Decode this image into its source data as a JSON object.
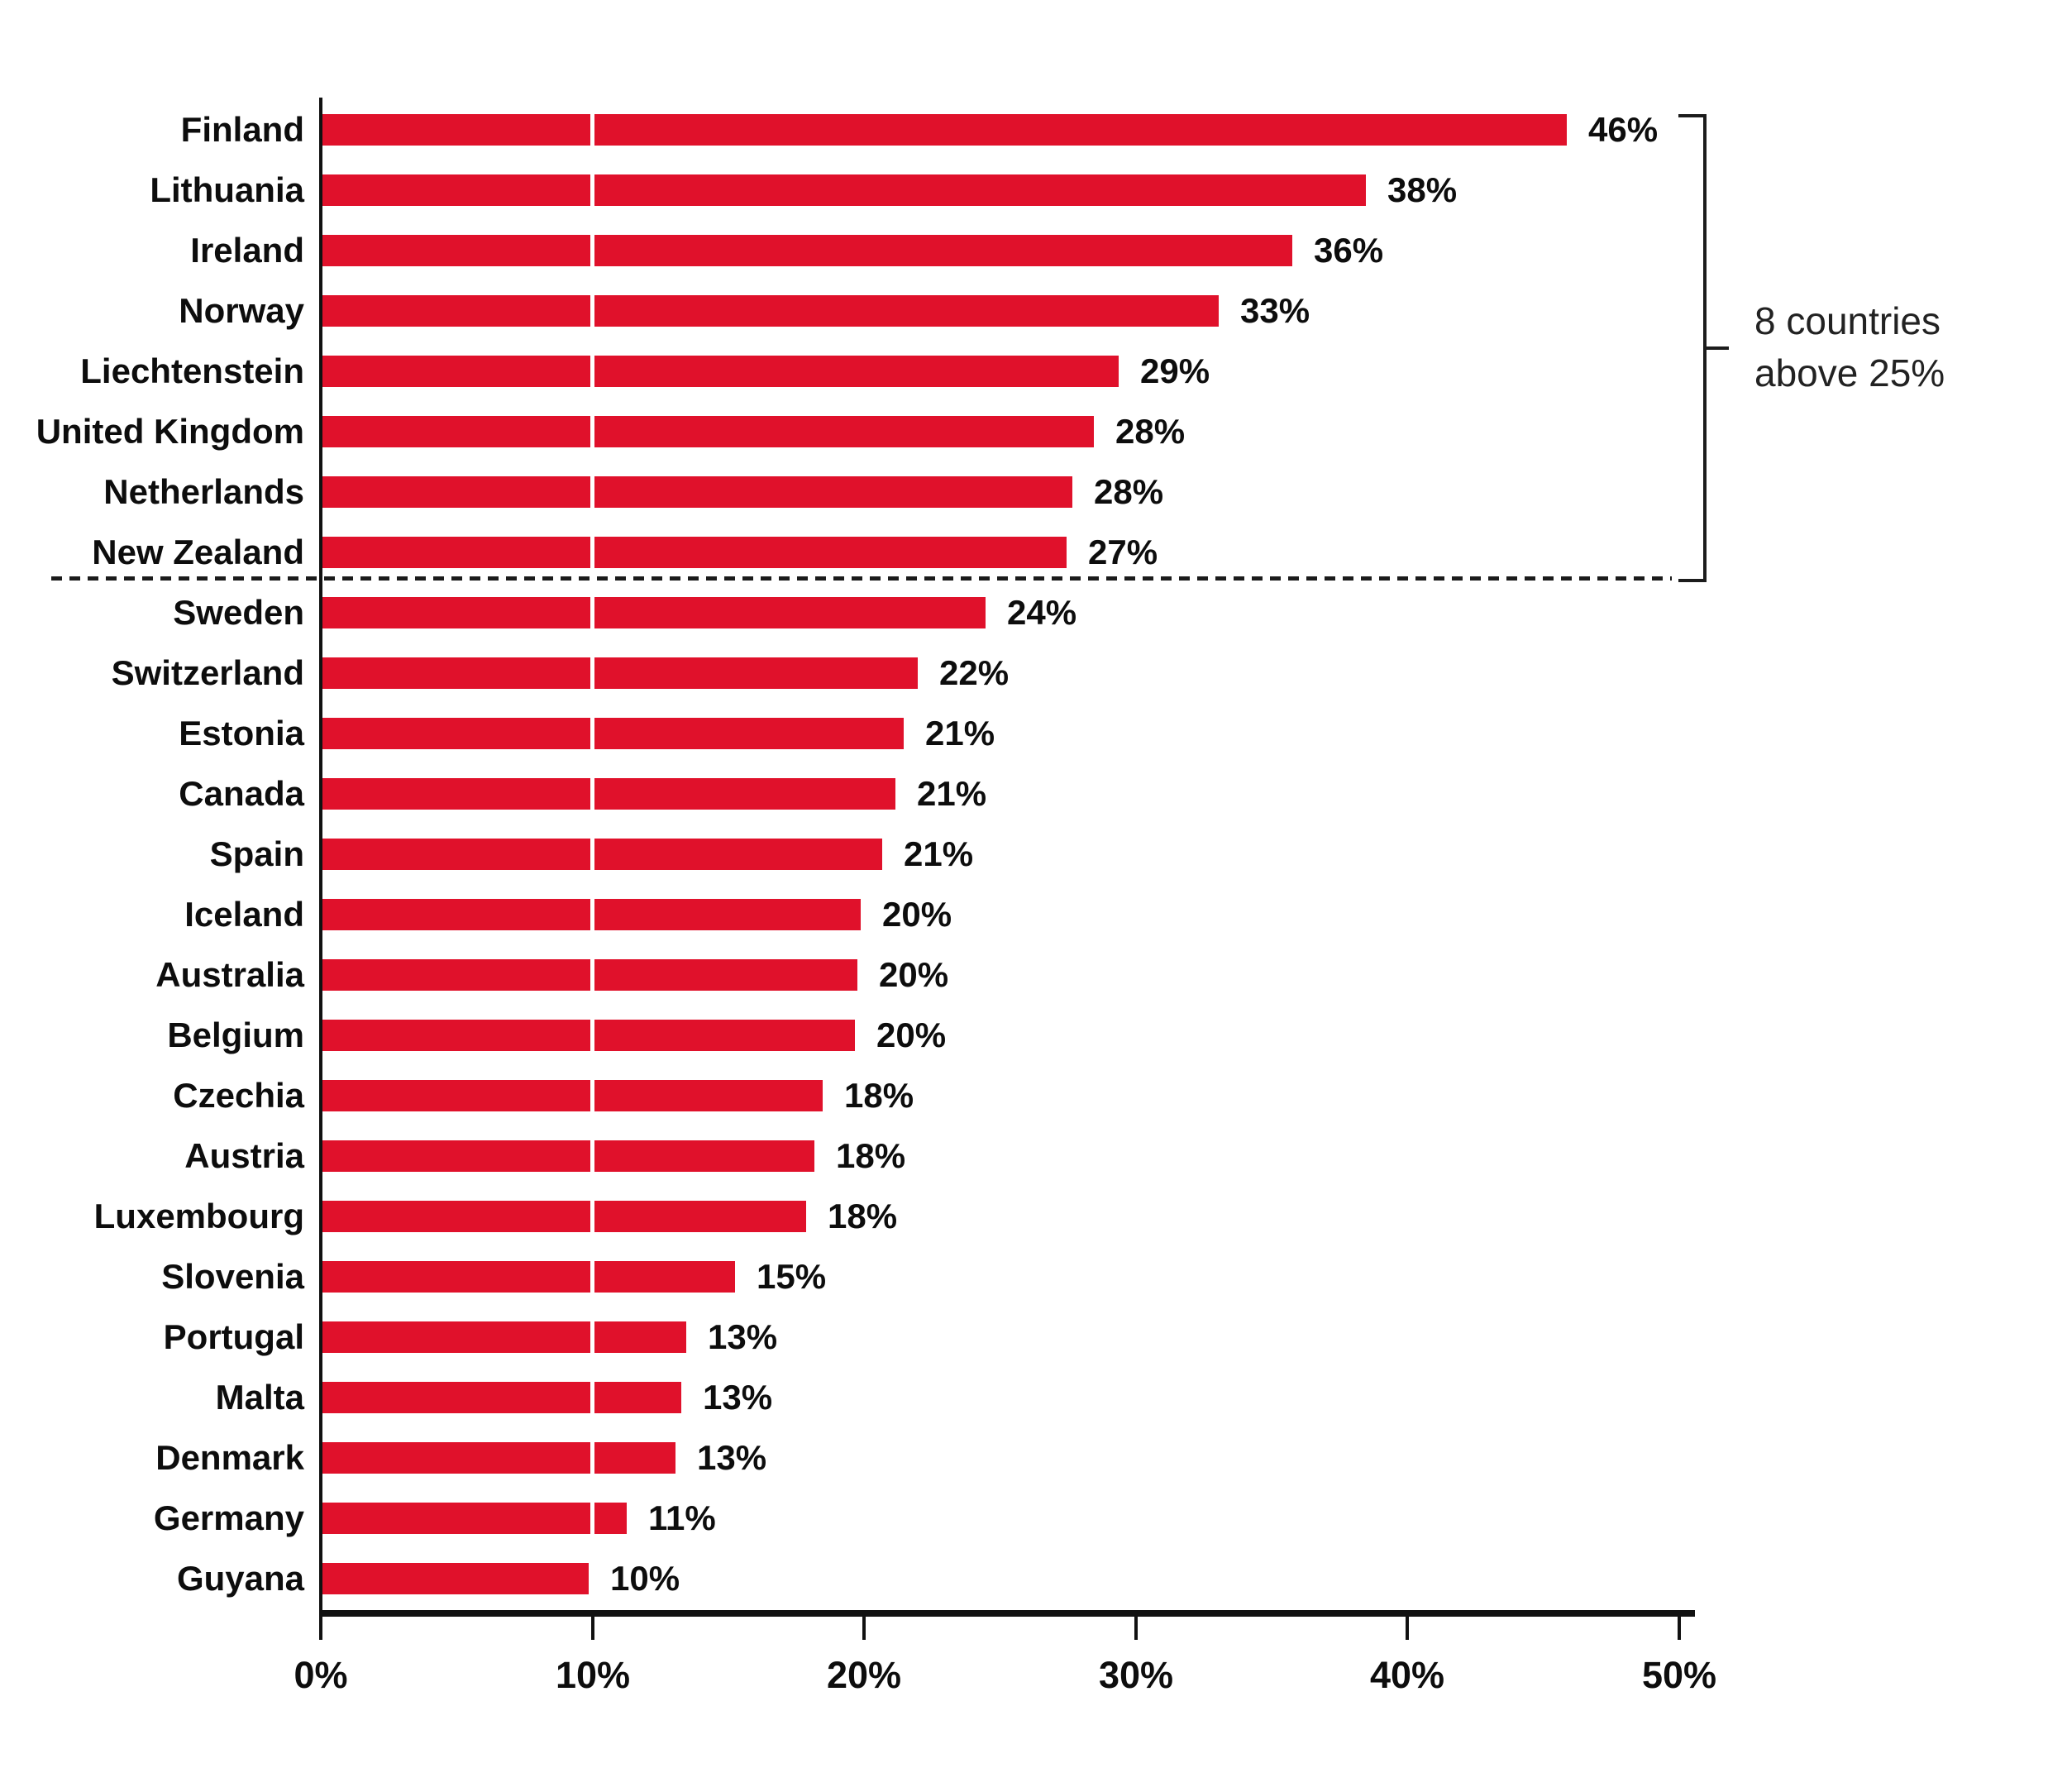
{
  "chart_data": {
    "type": "bar",
    "orientation": "horizontal",
    "title": "",
    "xlabel": "",
    "ylabel": "",
    "categories": [
      "Finland",
      "Lithuania",
      "Ireland",
      "Norway",
      "Liechtenstein",
      "United Kingdom",
      "Netherlands",
      "New Zealand",
      "Sweden",
      "Switzerland",
      "Estonia",
      "Canada",
      "Spain",
      "Iceland",
      "Australia",
      "Belgium",
      "Czechia",
      "Austria",
      "Luxembourg",
      "Slovenia",
      "Portugal",
      "Malta",
      "Denmark",
      "Germany",
      "Guyana"
    ],
    "values": [
      46,
      38,
      36,
      33,
      29,
      28,
      28,
      27,
      24,
      22,
      21,
      21,
      21,
      20,
      20,
      20,
      18,
      18,
      18,
      15,
      13,
      13,
      13,
      11,
      10
    ],
    "value_labels": [
      "46%",
      "38%",
      "36%",
      "33%",
      "29%",
      "28%",
      "28%",
      "27%",
      "24%",
      "22%",
      "21%",
      "21%",
      "21%",
      "20%",
      "20%",
      "20%",
      "18%",
      "18%",
      "18%",
      "15%",
      "13%",
      "13%",
      "13%",
      "11%",
      "10%"
    ],
    "bar_lengths_pct": [
      45.8,
      38.4,
      35.7,
      33.0,
      29.3,
      28.4,
      27.6,
      27.4,
      24.4,
      21.9,
      21.4,
      21.1,
      20.6,
      19.8,
      19.7,
      19.6,
      18.4,
      18.1,
      17.8,
      15.2,
      13.4,
      13.2,
      13.0,
      11.2,
      9.8
    ],
    "x_ticks": [
      "0%",
      "10%",
      "20%",
      "30%",
      "40%",
      "50%"
    ],
    "xlim": [
      0,
      50
    ],
    "grid": "off",
    "legend": "none",
    "separator_after_index": 7,
    "annotation": "8 countries above 25%",
    "annotation_lines": [
      "8 countries",
      "above 25%"
    ],
    "annotation_group_rows": [
      0,
      7
    ],
    "white_divider_at_pct": 10,
    "bar_color": "#E0112B",
    "axis_color": "#111111",
    "separator_color": "#1b1b1b",
    "text_color": "#0d0d0d"
  }
}
